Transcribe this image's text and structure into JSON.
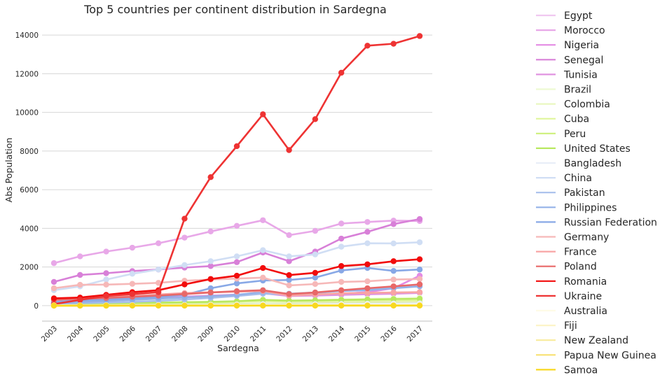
{
  "chart_data": {
    "type": "line",
    "title": "Top 5 countries per continent distribution in Sardegna",
    "xlabel": "Sardegna",
    "ylabel": "Abs Population",
    "x": [
      "2003",
      "2004",
      "2005",
      "2006",
      "2007",
      "2008",
      "2009",
      "2010",
      "2011",
      "2012",
      "2013",
      "2014",
      "2015",
      "2016",
      "2017"
    ],
    "ylim": [
      -800,
      14800
    ],
    "yticks": [
      0,
      2000,
      4000,
      6000,
      8000,
      10000,
      12000,
      14000
    ],
    "grid": "horizontal",
    "legend_position": "right-outside",
    "series": [
      {
        "name": "Egypt",
        "color": "#f0c8f0",
        "values": [
          20,
          30,
          40,
          50,
          60,
          70,
          80,
          90,
          100,
          110,
          120,
          130,
          140,
          150,
          160
        ]
      },
      {
        "name": "Morocco",
        "color": "#e8a8e8",
        "values": [
          2200,
          2550,
          2800,
          3000,
          3230,
          3520,
          3840,
          4130,
          4420,
          3650,
          3870,
          4250,
          4330,
          4400,
          4380
        ]
      },
      {
        "name": "Nigeria",
        "color": "#e48be4",
        "values": [
          150,
          200,
          260,
          320,
          380,
          440,
          500,
          560,
          640,
          520,
          560,
          620,
          700,
          900,
          1550
        ]
      },
      {
        "name": "Senegal",
        "color": "#d880d8",
        "values": [
          1230,
          1590,
          1680,
          1790,
          1870,
          1970,
          2050,
          2250,
          2750,
          2300,
          2800,
          3470,
          3820,
          4220,
          4480
        ]
      },
      {
        "name": "Tunisia",
        "color": "#e093e0",
        "values": [
          200,
          260,
          310,
          360,
          410,
          470,
          520,
          570,
          640,
          500,
          520,
          560,
          590,
          620,
          660
        ]
      },
      {
        "name": "Brazil",
        "color": "#eefad2",
        "values": [
          40,
          60,
          80,
          100,
          120,
          150,
          180,
          220,
          300,
          250,
          280,
          320,
          350,
          380,
          420
        ]
      },
      {
        "name": "Colombia",
        "color": "#eaf7c0",
        "values": [
          20,
          30,
          40,
          50,
          60,
          70,
          80,
          90,
          110,
          100,
          110,
          120,
          130,
          140,
          150
        ]
      },
      {
        "name": "Cuba",
        "color": "#dff59a",
        "values": [
          60,
          80,
          100,
          120,
          140,
          160,
          180,
          200,
          230,
          210,
          220,
          230,
          240,
          250,
          260
        ]
      },
      {
        "name": "Peru",
        "color": "#cdf07a",
        "values": [
          20,
          30,
          40,
          50,
          60,
          70,
          80,
          90,
          100,
          95,
          100,
          110,
          120,
          130,
          140
        ]
      },
      {
        "name": "United States",
        "color": "#b8e860",
        "values": [
          80,
          100,
          120,
          140,
          160,
          180,
          200,
          230,
          300,
          260,
          280,
          300,
          320,
          340,
          360
        ]
      },
      {
        "name": "Bangladesh",
        "color": "#e8eef8",
        "values": [
          10,
          15,
          20,
          25,
          30,
          40,
          50,
          60,
          80,
          70,
          80,
          90,
          100,
          110,
          120
        ]
      },
      {
        "name": "China",
        "color": "#d0def4",
        "values": [
          800,
          1000,
          1350,
          1650,
          1870,
          2100,
          2300,
          2550,
          2870,
          2550,
          2650,
          3050,
          3230,
          3220,
          3280
        ]
      },
      {
        "name": "Pakistan",
        "color": "#a8c0ec",
        "values": [
          100,
          130,
          160,
          200,
          250,
          320,
          400,
          500,
          620,
          580,
          640,
          780,
          860,
          960,
          1100
        ]
      },
      {
        "name": "Philippines",
        "color": "#94b2e8",
        "values": [
          120,
          180,
          240,
          300,
          360,
          420,
          480,
          560,
          700,
          620,
          680,
          760,
          800,
          900,
          1000
        ]
      },
      {
        "name": "Russian Federation",
        "color": "#88a8e6",
        "values": [
          200,
          270,
          320,
          370,
          440,
          560,
          900,
          1150,
          1300,
          1330,
          1450,
          1820,
          1950,
          1800,
          1870
        ]
      },
      {
        "name": "Germany",
        "color": "#f6b8b8",
        "values": [
          900,
          1080,
          1090,
          1130,
          1180,
          1290,
          1350,
          1400,
          1450,
          1050,
          1120,
          1230,
          1260,
          1350,
          1380
        ]
      },
      {
        "name": "France",
        "color": "#f8a4a4",
        "values": [
          350,
          400,
          450,
          520,
          580,
          650,
          690,
          720,
          760,
          520,
          580,
          640,
          660,
          680,
          700
        ]
      },
      {
        "name": "Poland",
        "color": "#e86868",
        "values": [
          300,
          350,
          400,
          460,
          520,
          600,
          680,
          750,
          800,
          600,
          680,
          800,
          900,
          1000,
          1100
        ]
      },
      {
        "name": "Romania",
        "color": "#f20c0c",
        "values": [
          380,
          420,
          560,
          700,
          800,
          1100,
          1380,
          1550,
          1950,
          1580,
          1700,
          2050,
          2140,
          2300,
          2400
        ]
      },
      {
        "name": "Ukraine",
        "color": "#ee3333",
        "values": [
          80,
          300,
          500,
          600,
          700,
          4500,
          6650,
          8250,
          9900,
          8050,
          9650,
          12050,
          13450,
          13550,
          13950
        ]
      },
      {
        "name": "Australia",
        "color": "#fefbe6",
        "values": [
          20,
          22,
          24,
          26,
          28,
          30,
          32,
          34,
          36,
          34,
          36,
          38,
          40,
          42,
          44
        ]
      },
      {
        "name": "Fiji",
        "color": "#fcf4c8",
        "values": [
          5,
          6,
          7,
          8,
          9,
          10,
          11,
          12,
          13,
          12,
          13,
          14,
          15,
          16,
          17
        ]
      },
      {
        "name": "New Zealand",
        "color": "#f8ec9c",
        "values": [
          8,
          9,
          10,
          11,
          12,
          13,
          14,
          15,
          16,
          15,
          16,
          17,
          18,
          19,
          20
        ]
      },
      {
        "name": "Papua New Guinea",
        "color": "#f8e070",
        "values": [
          2,
          2,
          3,
          3,
          4,
          4,
          5,
          5,
          6,
          5,
          6,
          6,
          7,
          7,
          8
        ]
      },
      {
        "name": "Samoa",
        "color": "#f8d820",
        "values": [
          1,
          1,
          1,
          2,
          2,
          2,
          2,
          3,
          3,
          3,
          3,
          3,
          4,
          4,
          4
        ]
      }
    ]
  }
}
